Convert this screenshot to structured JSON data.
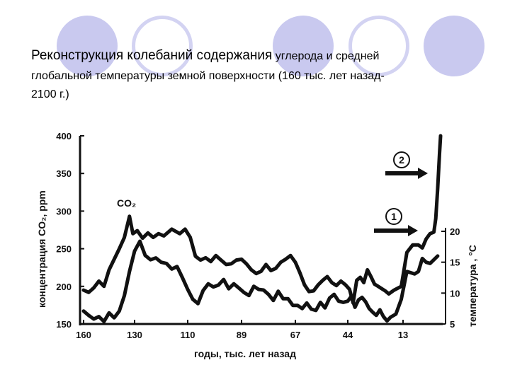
{
  "title": {
    "line1_main": "Реконструкция колебаний содержания",
    "line1_tail": " углерода и средней",
    "line2": "глобальной температуры земной поверхности (160 тыс. лет назад-",
    "line3": "2100 г.)"
  },
  "colors": {
    "decor_filled": "#c9c9ef",
    "decor_ring": "#d3d3f2",
    "ink": "#111111"
  },
  "chart_data": {
    "type": "line",
    "xlabel": "годы, тыс. лет назад",
    "ylabel_left": "концентрация CO₂, ppm",
    "ylabel_right": "температура , °C",
    "x_ticks": [
      "160",
      "130",
      "110",
      "89",
      "67",
      "44",
      "13"
    ],
    "y_left_ticks": [
      "400",
      "350",
      "300",
      "250",
      "200",
      "150"
    ],
    "y_right_ticks": [
      "20",
      "15",
      "10",
      "5"
    ],
    "ylim_left": [
      150,
      400
    ],
    "ylim_right": [
      5,
      20
    ],
    "series_label": "CO₂",
    "markers": [
      "1",
      "2"
    ],
    "series": [
      {
        "name": "CO₂",
        "axis": "left",
        "values": [
          [
            160,
            195
          ],
          [
            157,
            192
          ],
          [
            154,
            198
          ],
          [
            151,
            207
          ],
          [
            148,
            200
          ],
          [
            145,
            222
          ],
          [
            142,
            236
          ],
          [
            139,
            250
          ],
          [
            136,
            265
          ],
          [
            133,
            293
          ],
          [
            131,
            270
          ],
          [
            129,
            274
          ],
          [
            127,
            264
          ],
          [
            125,
            271
          ],
          [
            123,
            265
          ],
          [
            121,
            270
          ],
          [
            119,
            267
          ],
          [
            116,
            276
          ],
          [
            113,
            270
          ],
          [
            111,
            276
          ],
          [
            109,
            265
          ],
          [
            107,
            240
          ],
          [
            105,
            235
          ],
          [
            103,
            238
          ],
          [
            101,
            233
          ],
          [
            99,
            241
          ],
          [
            97,
            235
          ],
          [
            95,
            229
          ],
          [
            93,
            230
          ],
          [
            91,
            235
          ],
          [
            89,
            236
          ],
          [
            87,
            230
          ],
          [
            85,
            222
          ],
          [
            83,
            217
          ],
          [
            81,
            220
          ],
          [
            79,
            229
          ],
          [
            77,
            221
          ],
          [
            75,
            224
          ],
          [
            73,
            232
          ],
          [
            71,
            236
          ],
          [
            69,
            241
          ],
          [
            67,
            232
          ],
          [
            65,
            218
          ],
          [
            63,
            202
          ],
          [
            61,
            193
          ],
          [
            59,
            194
          ],
          [
            57,
            202
          ],
          [
            55,
            208
          ],
          [
            53,
            213
          ],
          [
            51,
            205
          ],
          [
            49,
            201
          ],
          [
            47,
            207
          ],
          [
            45,
            202
          ],
          [
            43,
            196
          ],
          [
            41,
            178
          ],
          [
            39,
            208
          ],
          [
            37,
            212
          ],
          [
            35,
            205
          ],
          [
            33,
            222
          ],
          [
            31,
            213
          ],
          [
            29,
            203
          ],
          [
            27,
            200
          ],
          [
            25,
            197
          ],
          [
            23,
            194
          ],
          [
            21,
            190
          ],
          [
            18,
            195
          ],
          [
            14,
            200
          ],
          [
            11,
            245
          ],
          [
            8,
            255
          ],
          [
            5,
            255
          ],
          [
            3,
            251
          ],
          [
            1,
            263
          ],
          [
            -1,
            270
          ],
          [
            -3,
            272
          ],
          [
            -4,
            290
          ],
          [
            -5,
            330
          ],
          [
            -6,
            378
          ],
          [
            -6.5,
            400
          ]
        ]
      },
      {
        "name": "",
        "axis": "right",
        "values": [
          [
            160,
            7.1
          ],
          [
            157,
            6.4
          ],
          [
            154,
            5.8
          ],
          [
            151,
            6.2
          ],
          [
            148,
            5.4
          ],
          [
            145,
            6.8
          ],
          [
            142,
            6.0
          ],
          [
            139,
            7.1
          ],
          [
            136,
            9.6
          ],
          [
            133,
            13.5
          ],
          [
            130,
            16.8
          ],
          [
            128,
            18.4
          ],
          [
            126,
            16.1
          ],
          [
            124,
            15.4
          ],
          [
            122,
            15.7
          ],
          [
            120,
            15.0
          ],
          [
            118,
            14.8
          ],
          [
            116,
            13.9
          ],
          [
            114,
            14.3
          ],
          [
            112,
            12.5
          ],
          [
            110,
            10.6
          ],
          [
            108,
            9.0
          ],
          [
            106,
            8.3
          ],
          [
            104,
            10.4
          ],
          [
            102,
            11.5
          ],
          [
            100,
            11.0
          ],
          [
            98,
            11.3
          ],
          [
            96,
            12.2
          ],
          [
            94,
            10.7
          ],
          [
            92,
            11.5
          ],
          [
            90,
            10.8
          ],
          [
            88,
            10.1
          ],
          [
            86,
            9.6
          ],
          [
            84,
            11.1
          ],
          [
            82,
            10.6
          ],
          [
            80,
            10.5
          ],
          [
            78,
            9.8
          ],
          [
            76,
            8.8
          ],
          [
            74,
            10.3
          ],
          [
            72,
            9.1
          ],
          [
            70,
            9.1
          ],
          [
            68,
            8.0
          ],
          [
            66,
            8.0
          ],
          [
            64,
            7.5
          ],
          [
            62,
            8.4
          ],
          [
            60,
            7.4
          ],
          [
            58,
            7.2
          ],
          [
            56,
            8.5
          ],
          [
            54,
            7.6
          ],
          [
            52,
            9.2
          ],
          [
            50,
            9.8
          ],
          [
            48,
            8.7
          ],
          [
            46,
            8.5
          ],
          [
            44,
            8.7
          ],
          [
            42,
            9.5
          ],
          [
            40,
            7.7
          ],
          [
            38,
            8.9
          ],
          [
            36,
            9.3
          ],
          [
            34,
            8.6
          ],
          [
            32,
            7.5
          ],
          [
            30,
            6.9
          ],
          [
            28,
            6.4
          ],
          [
            26,
            7.3
          ],
          [
            24,
            6.2
          ],
          [
            22,
            5.5
          ],
          [
            20,
            6.1
          ],
          [
            17,
            6.6
          ],
          [
            14,
            9.0
          ],
          [
            11,
            13.5
          ],
          [
            9,
            13.3
          ],
          [
            7,
            13.1
          ],
          [
            5,
            13.5
          ],
          [
            3,
            15.6
          ],
          [
            1,
            15.0
          ],
          [
            -1,
            14.8
          ],
          [
            -3,
            15.4
          ],
          [
            -5,
            16.0
          ]
        ]
      }
    ]
  }
}
